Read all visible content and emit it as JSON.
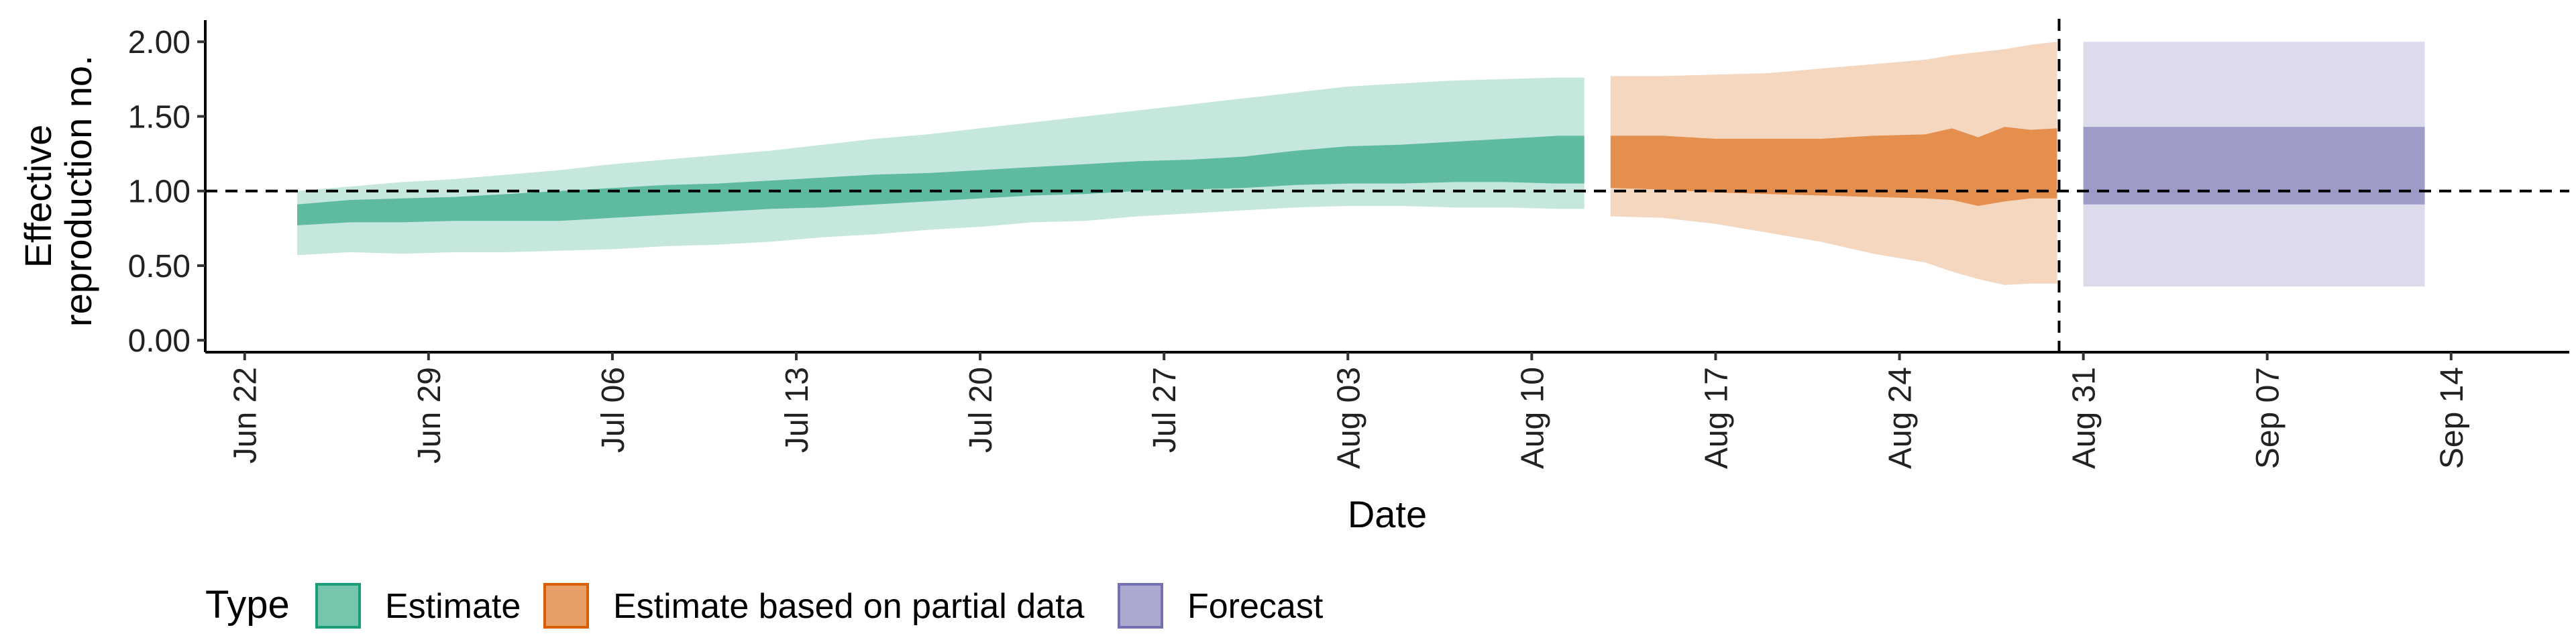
{
  "chart_data": {
    "type": "area",
    "xlabel": "Date",
    "ylabel_lines": [
      "Effective",
      "reproduction no."
    ],
    "x_ticks": [
      "Jun 22",
      "Jun 29",
      "Jul 06",
      "Jul 13",
      "Jul 20",
      "Jul 27",
      "Aug 03",
      "Aug 10",
      "Aug 17",
      "Aug 24",
      "Aug 31",
      "Sep 07",
      "Sep 14"
    ],
    "y_ticks": [
      "0.00",
      "0.50",
      "1.00",
      "1.50",
      "2.00"
    ],
    "ylim": [
      -0.08,
      2.1
    ],
    "reference_hline": 1.0,
    "forecast_vline": "Aug 30",
    "legend": {
      "title": "Type",
      "position": "bottom",
      "items": [
        {
          "label": "Estimate",
          "color": "#1b9e77"
        },
        {
          "label": "Estimate based on partial data",
          "color": "#d95f02"
        },
        {
          "label": "Forecast",
          "color": "#7570b3"
        }
      ]
    },
    "series": [
      {
        "name": "Estimate",
        "color": "#1b9e77",
        "dates": [
          "Jun 24",
          "Jun 26",
          "Jun 28",
          "Jun 30",
          "Jul 02",
          "Jul 04",
          "Jul 06",
          "Jul 08",
          "Jul 10",
          "Jul 12",
          "Jul 14",
          "Jul 16",
          "Jul 18",
          "Jul 20",
          "Jul 22",
          "Jul 24",
          "Jul 26",
          "Jul 28",
          "Jul 30",
          "Aug 01",
          "Aug 03",
          "Aug 05",
          "Aug 07",
          "Aug 09",
          "Aug 11",
          "Aug 12"
        ],
        "inner_lower": [
          0.77,
          0.79,
          0.79,
          0.8,
          0.8,
          0.8,
          0.82,
          0.84,
          0.86,
          0.88,
          0.89,
          0.91,
          0.93,
          0.95,
          0.97,
          0.98,
          1.0,
          1.01,
          1.02,
          1.04,
          1.05,
          1.05,
          1.06,
          1.06,
          1.05,
          1.05
        ],
        "inner_upper": [
          0.91,
          0.94,
          0.95,
          0.96,
          0.98,
          1.0,
          1.02,
          1.04,
          1.05,
          1.07,
          1.09,
          1.11,
          1.12,
          1.14,
          1.16,
          1.18,
          1.2,
          1.21,
          1.23,
          1.27,
          1.3,
          1.31,
          1.33,
          1.35,
          1.37,
          1.37
        ],
        "outer_lower": [
          0.57,
          0.59,
          0.58,
          0.59,
          0.59,
          0.6,
          0.61,
          0.63,
          0.64,
          0.66,
          0.69,
          0.71,
          0.74,
          0.76,
          0.79,
          0.8,
          0.83,
          0.85,
          0.87,
          0.89,
          0.9,
          0.9,
          0.89,
          0.89,
          0.88,
          0.88
        ],
        "outer_upper": [
          1.0,
          1.03,
          1.06,
          1.08,
          1.11,
          1.14,
          1.18,
          1.21,
          1.24,
          1.27,
          1.31,
          1.35,
          1.38,
          1.42,
          1.46,
          1.5,
          1.54,
          1.58,
          1.62,
          1.66,
          1.7,
          1.72,
          1.74,
          1.75,
          1.76,
          1.76
        ]
      },
      {
        "name": "Estimate based on partial data",
        "color": "#d95f02",
        "dates": [
          "Aug 13",
          "Aug 15",
          "Aug 17",
          "Aug 19",
          "Aug 21",
          "Aug 23",
          "Aug 25",
          "Aug 26",
          "Aug 27",
          "Aug 28",
          "Aug 29",
          "Aug 30"
        ],
        "inner_lower": [
          1.02,
          1.01,
          0.99,
          0.98,
          0.97,
          0.96,
          0.95,
          0.94,
          0.9,
          0.93,
          0.95,
          0.95
        ],
        "inner_upper": [
          1.37,
          1.37,
          1.35,
          1.35,
          1.35,
          1.37,
          1.38,
          1.42,
          1.36,
          1.43,
          1.41,
          1.42
        ],
        "outer_lower": [
          0.83,
          0.82,
          0.78,
          0.72,
          0.66,
          0.58,
          0.52,
          0.46,
          0.41,
          0.37,
          0.38,
          0.38
        ],
        "outer_upper": [
          1.77,
          1.77,
          1.78,
          1.79,
          1.82,
          1.85,
          1.88,
          1.91,
          1.93,
          1.95,
          1.98,
          2.0
        ]
      },
      {
        "name": "Forecast",
        "color": "#7570b3",
        "dates": [
          "Aug 31",
          "Sep 13"
        ],
        "inner_lower": [
          0.91,
          0.91
        ],
        "inner_upper": [
          1.43,
          1.43
        ],
        "outer_lower": [
          0.36,
          0.36
        ],
        "outer_upper": [
          2.0,
          2.0
        ]
      }
    ]
  }
}
